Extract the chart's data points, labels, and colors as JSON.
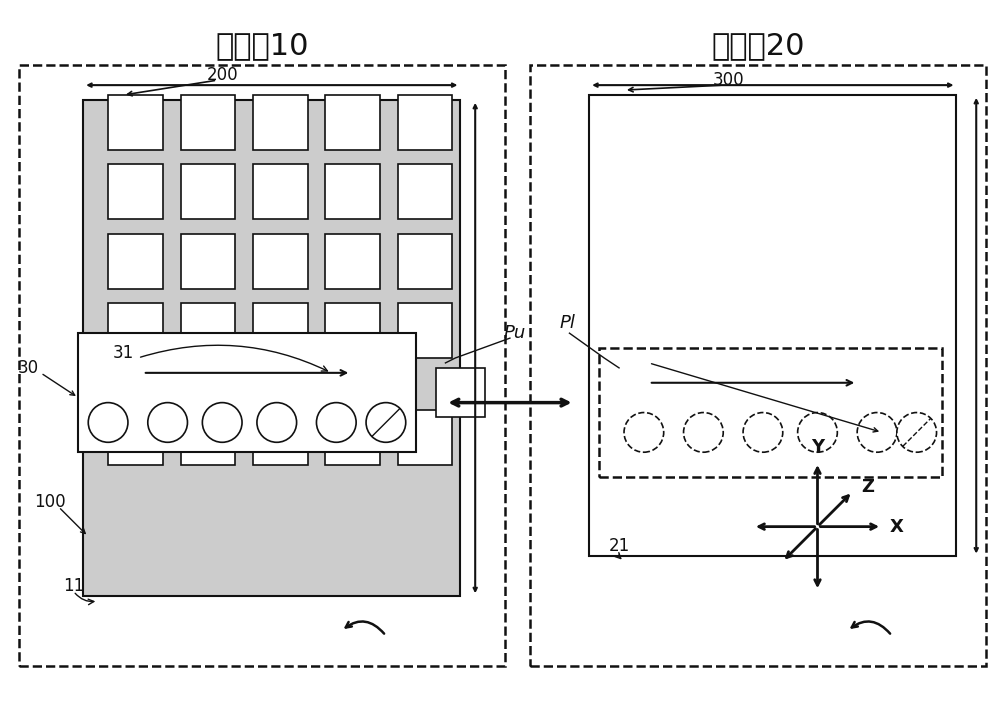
{
  "bg_color": "#ffffff",
  "line_color": "#111111",
  "title_left": "拾取部10",
  "title_right": "推压部20",
  "label_200": "200",
  "label_300": "300",
  "label_30": "30",
  "label_31": "31",
  "label_100": "100",
  "label_11": "11",
  "label_21": "21",
  "label_Pu": "Pu",
  "label_Pl": "Pl",
  "axis_x": "X",
  "axis_y": "Y",
  "axis_z": "Z",
  "font_title": 22,
  "font_label": 12,
  "font_axis": 13
}
